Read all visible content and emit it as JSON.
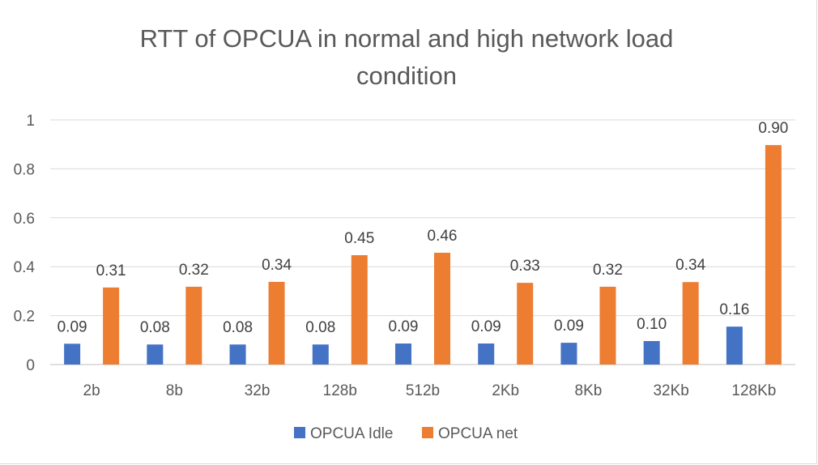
{
  "chart_data": {
    "type": "bar",
    "title_lines": [
      "RTT of OPCUA in normal and high network load",
      "condition"
    ],
    "categories": [
      "2b",
      "8b",
      "32b",
      "128b",
      "512b",
      "2Kb",
      "8Kb",
      "32Kb",
      "128Kb"
    ],
    "series": [
      {
        "name": "OPCUA Idle",
        "color": "#4472c4",
        "values": [
          0.085,
          0.082,
          0.082,
          0.082,
          0.086,
          0.086,
          0.089,
          0.096,
          0.155
        ],
        "labels": [
          "0.09",
          "0.08",
          "0.08",
          "0.08",
          "0.09",
          "0.09",
          "0.09",
          "0.10",
          "0.16"
        ]
      },
      {
        "name": "OPCUA net",
        "color": "#ed7d31",
        "values": [
          0.315,
          0.318,
          0.338,
          0.447,
          0.457,
          0.334,
          0.318,
          0.337,
          0.897
        ],
        "labels": [
          "0.31",
          "0.32",
          "0.34",
          "0.45",
          "0.46",
          "0.33",
          "0.32",
          "0.34",
          "0.90"
        ]
      }
    ],
    "ylim": [
      0,
      1
    ],
    "yticks": [
      0,
      0.2,
      0.4,
      0.6,
      0.8,
      1
    ],
    "ytick_labels": [
      "0",
      "0.2",
      "0.4",
      "0.6",
      "0.8",
      "1"
    ],
    "grid": true,
    "legend": "bottom"
  }
}
